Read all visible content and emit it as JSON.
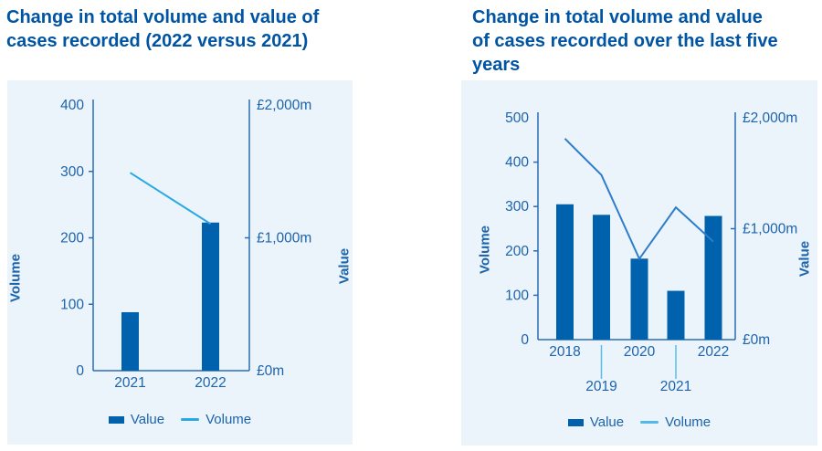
{
  "chart_data": [
    {
      "type": "bar+line combo",
      "title": "Change in total volume and value of cases recorded (2022 versus 2021)",
      "categories": [
        "2021",
        "2022"
      ],
      "series": [
        {
          "name": "Value",
          "type": "bar",
          "axis": "right",
          "unit": "£m",
          "values": [
            440,
            1115
          ]
        },
        {
          "name": "Volume",
          "type": "line",
          "axis": "left",
          "unit": "cases",
          "values": [
            298,
            221
          ]
        }
      ],
      "left_axis": {
        "label": "Volume",
        "min": 0,
        "max": 400,
        "step": 100,
        "ticks": [
          "0",
          "100",
          "200",
          "300",
          "400"
        ]
      },
      "right_axis": {
        "label": "Value",
        "min": 0,
        "max": 2000,
        "ticks": [
          "£0m",
          "£1,000m",
          "£2,000m"
        ]
      },
      "legend": [
        {
          "label": "Value",
          "swatch": "bar"
        },
        {
          "label": "Volume",
          "swatch": "line"
        }
      ],
      "legend_position": "bottom",
      "grid": false,
      "colors": {
        "panel_bg": "#EBF3FB",
        "bar": "#0061AD",
        "line": "#29A9E1",
        "legend_line": "#29A9E1",
        "axis": "#2A6CB3",
        "text": "#1C64AC",
        "title": "#0054A4"
      }
    },
    {
      "type": "bar+line combo",
      "title": "Change in total volume and value of cases recorded over the last five years",
      "categories": [
        "2018",
        "2019",
        "2020",
        "2021",
        "2022"
      ],
      "series": [
        {
          "name": "Value",
          "type": "bar",
          "axis": "right",
          "unit": "£m",
          "values": [
            1220,
            1125,
            730,
            440,
            1115
          ]
        },
        {
          "name": "Volume",
          "type": "line",
          "axis": "left",
          "unit": "cases",
          "values": [
            453,
            371,
            182,
            298,
            221
          ]
        }
      ],
      "left_axis": {
        "label": "Volume",
        "min": 0,
        "max": 500,
        "step": 100,
        "ticks": [
          "0",
          "100",
          "200",
          "300",
          "400",
          "500"
        ]
      },
      "right_axis": {
        "label": "Value",
        "min": 0,
        "max": 2000,
        "ticks": [
          "£0m",
          "£1,000m",
          "£2,000m"
        ]
      },
      "legend": [
        {
          "label": "Value",
          "swatch": "bar"
        },
        {
          "label": "Volume",
          "swatch": "line"
        }
      ],
      "legend_position": "bottom",
      "grid": false,
      "colors": {
        "panel_bg": "#EBF3FB",
        "bar": "#0061AD",
        "line": "#2E7DC9",
        "legend_line": "#53B9E9",
        "leader_line": "#5BBBE9",
        "axis": "#2A6CB3",
        "text": "#1C64AC",
        "title": "#0054A4"
      }
    }
  ]
}
